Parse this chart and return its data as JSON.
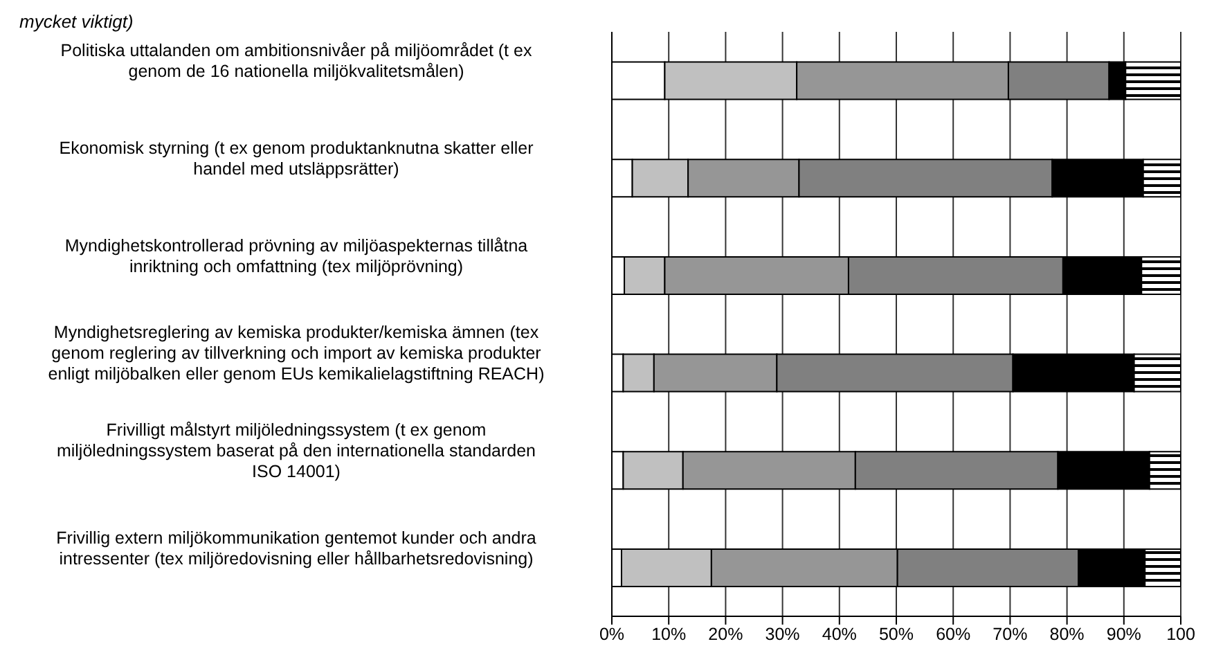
{
  "chart_data": {
    "type": "bar",
    "orientation": "horizontal",
    "stacked": true,
    "title": "mycket viktigt)",
    "categories": [
      "Politiska uttalanden om ambitionsnivåer på miljöområdet (t ex genom de 16 nationella miljökvalitetsmålen)",
      "Ekonomisk styrning (t ex genom produktanknutna skatter eller handel med utsläppsrätter)",
      "Myndighetskontrollerad prövning av miljöaspekternas tillåtna inriktning och omfattning (tex miljöprövning)",
      "Myndighetsreglering av kemiska produkter/kemiska ämnen (tex genom reglering av tillverkning och import av kemiska produkter enligt miljöbalken eller genom EUs kemikalielagstiftning REACH)",
      "Frivilligt målstyrt miljöledningssystem (t ex genom miljöledningssystem baserat på den internationella standarden ISO 14001)",
      "Frivillig extern miljökommunikation gentemot kunder och andra intressenter (tex miljöredovisning eller hållbarhetsredovisning)"
    ],
    "series": [
      {
        "color": "#ffffff",
        "values": [
          9.3,
          3.6,
          2.2,
          2.0,
          2.0,
          1.7
        ]
      },
      {
        "color": "#c0c0c0",
        "values": [
          23.2,
          9.8,
          7.1,
          5.4,
          10.5,
          15.8
        ]
      },
      {
        "color": "#969696",
        "values": [
          37.2,
          19.5,
          32.3,
          21.6,
          30.3,
          32.7
        ]
      },
      {
        "color": "#808080",
        "values": [
          17.7,
          44.5,
          37.7,
          41.5,
          35.6,
          31.8
        ]
      },
      {
        "color": "#000000",
        "values": [
          2.9,
          16.0,
          13.8,
          21.3,
          16.1,
          11.7
        ]
      },
      {
        "color": "#000000",
        "values": [
          9.7,
          6.6,
          6.9,
          8.2,
          5.5,
          6.3
        ]
      }
    ],
    "xlim": [
      0,
      100
    ],
    "xticks": [
      {
        "value": 0,
        "label": "0%"
      },
      {
        "value": 10,
        "label": "10%"
      },
      {
        "value": 20,
        "label": "20%"
      },
      {
        "value": 30,
        "label": "30%"
      },
      {
        "value": 40,
        "label": "40%"
      },
      {
        "value": 50,
        "label": "50%"
      },
      {
        "value": 60,
        "label": "60%"
      },
      {
        "value": 70,
        "label": "70%"
      },
      {
        "value": 80,
        "label": "80%"
      },
      {
        "value": 90,
        "label": "90%"
      },
      {
        "value": 100,
        "label": "100"
      }
    ],
    "grid": "x"
  }
}
